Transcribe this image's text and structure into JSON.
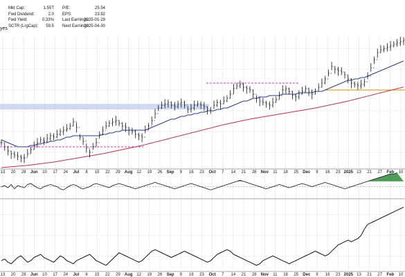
{
  "header": {
    "ticker_suffix": "yes",
    "fields": [
      {
        "label": "Mkt Cap:",
        "value": "1.55T"
      },
      {
        "label": "Fwd Dividend:",
        "value": "2.0"
      },
      {
        "label": "Fwd Yield:",
        "value": "0.33%"
      },
      {
        "label": "SCTR (LrgCap):",
        "value": "59.5"
      },
      {
        "label": "P/E:",
        "value": "25.54"
      },
      {
        "label": "EPS:",
        "value": "23.92"
      },
      {
        "label": "Last Earnings:",
        "value": "2025-01-29"
      },
      {
        "label": "Next Earnings:",
        "value": "2025-04-30"
      }
    ]
  },
  "colors": {
    "price": "#111111",
    "ma_short": "#2b3a8c",
    "ma_long": "#b2334a",
    "resistance": "#c637c6",
    "support": "#e08a00",
    "zone": "#c8d2ee",
    "momentum_fill": "#2e8b3a",
    "grid": "#e3e3e3"
  },
  "chart_data": {
    "type": "line",
    "x_tick_labels": [
      "13",
      "20",
      "28",
      "Jun",
      "10",
      "17",
      "24",
      "Jul",
      "8",
      "15",
      "22",
      "29",
      "Aug",
      "12",
      "19",
      "26",
      "Sep",
      "9",
      "16",
      "23",
      "Oct",
      "7",
      "14",
      "21",
      "28",
      "Nov",
      "11",
      "18",
      "25",
      "Dec",
      "9",
      "16",
      "23",
      "2025",
      "13",
      "21",
      "27",
      "Feb",
      "10"
    ],
    "bold_ticks": [
      "Jun",
      "Jul",
      "Aug",
      "Sep",
      "Oct",
      "Nov",
      "Dec",
      "2025",
      "Feb"
    ],
    "series": [
      {
        "values": [
          58,
          55,
          52,
          50,
          49,
          48,
          47,
          47,
          50,
          53,
          56,
          58,
          60,
          59,
          61,
          63,
          62,
          64,
          66,
          67,
          68,
          70,
          73,
          69,
          62,
          59,
          54,
          51,
          55,
          58,
          64,
          67,
          70,
          72,
          73,
          74,
          72,
          70,
          69,
          67,
          66,
          64,
          63,
          62,
          67,
          70,
          74,
          79,
          83,
          85,
          86,
          87,
          85,
          84,
          86,
          87,
          85,
          82,
          83,
          85,
          86,
          85,
          84,
          82,
          81,
          85,
          87,
          86,
          88,
          90,
          93,
          97,
          99,
          100,
          98,
          97,
          96,
          93,
          90,
          88,
          87,
          86,
          85,
          87,
          89,
          92,
          96,
          97,
          95,
          92,
          91,
          93,
          95,
          97,
          95,
          93,
          95,
          98,
          101,
          104,
          108,
          113,
          111,
          110,
          109,
          107,
          104,
          101,
          100,
          99,
          100,
          102,
          106,
          112,
          118,
          123,
          125,
          126,
          127,
          128,
          129,
          130,
          131,
          132
        ]
      },
      {
        "values": [
          60,
          59,
          58,
          57,
          56,
          55,
          55,
          55,
          55,
          56,
          56,
          57,
          57,
          58,
          58,
          59,
          59,
          60,
          60,
          61,
          62,
          62,
          63,
          63,
          63,
          63,
          63,
          63,
          63,
          63,
          63,
          64,
          64,
          65,
          65,
          66,
          66,
          67,
          67,
          67,
          67,
          67,
          67,
          67,
          67,
          68,
          69,
          70,
          71,
          72,
          73,
          74,
          75,
          75,
          76,
          77,
          77,
          78,
          78,
          79,
          79,
          80,
          80,
          81,
          81,
          81,
          82,
          82,
          83,
          83,
          84,
          85,
          86,
          87,
          88,
          88,
          89,
          90,
          90,
          91,
          91,
          91,
          92,
          92,
          92,
          92,
          93,
          93,
          93,
          93,
          93,
          94,
          94,
          94,
          94,
          94,
          95,
          95,
          95,
          96,
          97,
          98,
          99,
          100,
          101,
          102,
          103,
          103,
          104,
          104,
          105,
          105,
          106,
          107,
          108,
          109,
          110,
          111,
          112,
          113,
          114,
          115,
          116,
          117
        ]
      },
      {
        "values": [
          40,
          40.2,
          40.4,
          40.6,
          40.8,
          41,
          41.2,
          41.4,
          41.6,
          41.9,
          42.2,
          42.5,
          42.8,
          43.1,
          43.4,
          43.7,
          44,
          44.4,
          44.8,
          45.2,
          45.6,
          46,
          46.4,
          46.8,
          47.2,
          47.6,
          48,
          48.4,
          48.8,
          49.2,
          49.6,
          50,
          50.5,
          51,
          51.5,
          52,
          52.5,
          53,
          53.5,
          54,
          54.5,
          55,
          55.5,
          56,
          56.6,
          57.2,
          57.8,
          58.4,
          59,
          59.6,
          60.2,
          60.8,
          61.4,
          62,
          62.6,
          63.2,
          63.8,
          64.4,
          65,
          65.6,
          66.2,
          66.8,
          67.4,
          68,
          68.6,
          69.2,
          69.8,
          70.4,
          71,
          71.5,
          72,
          72.5,
          73,
          73.5,
          74,
          74.5,
          75,
          75.4,
          75.8,
          76.2,
          76.6,
          77,
          77.4,
          77.8,
          78.2,
          78.6,
          79,
          79.4,
          79.8,
          80.2,
          80.6,
          81,
          81.4,
          81.8,
          82.2,
          82.6,
          83,
          83.5,
          84,
          84.5,
          85,
          85.5,
          86,
          86.5,
          87,
          87.5,
          88,
          88.6,
          89.2,
          89.8,
          90.4,
          91,
          91.6,
          92.2,
          92.8,
          93.4,
          94,
          94.6,
          95.2,
          95.8,
          96.4,
          97,
          97.6,
          98.2
        ]
      }
    ],
    "ylim": [
      40,
      135
    ],
    "momentum": {
      "values": [
        0,
        1,
        -1,
        2,
        -2,
        1,
        0,
        -1,
        2,
        3,
        1,
        -1,
        -2,
        0,
        1,
        2,
        1,
        0,
        -2,
        -3,
        -1,
        1,
        2,
        1,
        -1,
        -2,
        -1,
        0,
        2,
        3,
        2,
        1,
        0,
        -1,
        1,
        2,
        3,
        2,
        1,
        0,
        -1,
        -2,
        -1,
        0,
        1,
        2,
        3,
        4,
        3,
        2,
        1,
        0,
        -1,
        -2,
        -1,
        0,
        1,
        2,
        3,
        2,
        1,
        0,
        -1,
        -2,
        -3,
        -2,
        -1,
        0,
        1,
        2,
        3,
        4,
        5,
        6,
        5,
        4,
        3,
        2,
        1,
        0,
        -1,
        -2,
        -1,
        0,
        1,
        2,
        1,
        0,
        -1,
        0,
        1,
        2,
        3,
        2,
        1,
        0,
        1,
        2,
        3,
        4,
        3,
        2,
        1,
        0,
        -1,
        -2,
        -1,
        0,
        1,
        2,
        3,
        4,
        5,
        6,
        7,
        8,
        9,
        10,
        11,
        12,
        12,
        13
      ],
      "ylim": [
        -10,
        14
      ]
    },
    "relative": {
      "values": [
        44,
        45,
        43,
        42,
        44,
        46,
        47,
        45,
        43,
        44,
        46,
        47,
        48,
        46,
        45,
        44,
        43,
        45,
        47,
        46,
        44,
        43,
        42,
        44,
        45,
        46,
        47,
        48,
        46,
        44,
        43,
        42,
        41,
        43,
        45,
        47,
        49,
        48,
        47,
        46,
        45,
        44,
        43,
        44,
        46,
        48,
        50,
        51,
        50,
        49,
        48,
        47,
        46,
        47,
        48,
        49,
        50,
        49,
        48,
        47,
        46,
        45,
        44,
        43,
        44,
        46,
        48,
        49,
        50,
        51,
        50,
        48,
        47,
        46,
        45,
        44,
        43,
        42,
        41,
        42,
        44,
        45,
        46,
        47,
        46,
        45,
        44,
        43,
        42,
        43,
        44,
        45,
        46,
        47,
        48,
        49,
        50,
        49,
        48,
        47,
        48,
        50,
        52,
        54,
        55,
        56,
        57,
        56,
        57,
        58,
        60,
        64,
        67,
        68,
        69,
        70,
        71,
        72,
        73,
        74,
        75,
        76,
        77,
        78
      ],
      "ylim": [
        38,
        82
      ]
    }
  }
}
